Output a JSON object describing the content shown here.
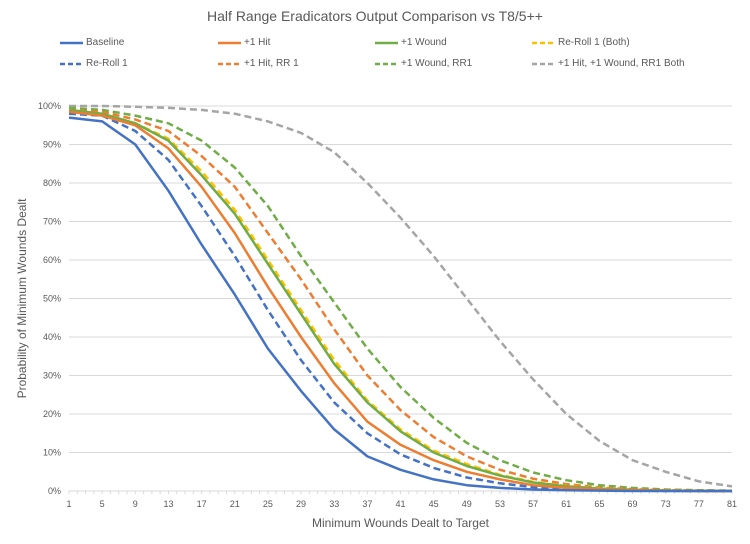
{
  "chart_data": {
    "type": "line",
    "title": "Half Range Eradicators Output Comparison vs T8/5++",
    "xlabel": "Minimum Wounds Dealt to Target",
    "ylabel": "Probability of Minimum Wounds Dealt",
    "x_ticks": [
      "1",
      "5",
      "9",
      "13",
      "17",
      "21",
      "25",
      "29",
      "33",
      "37",
      "41",
      "45",
      "49",
      "53",
      "57",
      "61",
      "65",
      "69",
      "73",
      "77",
      "81"
    ],
    "y_ticks": [
      "0%",
      "10%",
      "20%",
      "30%",
      "40%",
      "50%",
      "60%",
      "70%",
      "80%",
      "90%",
      "100%"
    ],
    "xlim": [
      1,
      81
    ],
    "ylim": [
      0,
      1
    ],
    "grid": "horizontal",
    "legend_position": "top",
    "x": [
      1,
      5,
      9,
      13,
      17,
      21,
      25,
      29,
      33,
      37,
      41,
      45,
      49,
      53,
      57,
      61,
      65,
      69,
      73,
      77,
      81
    ],
    "series": [
      {
        "name": "Baseline",
        "color": "#4472C4",
        "dash": false,
        "values": [
          0.97,
          0.96,
          0.9,
          0.78,
          0.64,
          0.51,
          0.37,
          0.26,
          0.16,
          0.09,
          0.055,
          0.03,
          0.015,
          0.008,
          0.004,
          0.002,
          0.001,
          0.0,
          0.0,
          0.0,
          0.0
        ]
      },
      {
        "name": "+1 Hit",
        "color": "#ED7D31",
        "dash": false,
        "values": [
          0.985,
          0.975,
          0.95,
          0.89,
          0.79,
          0.67,
          0.53,
          0.4,
          0.28,
          0.18,
          0.12,
          0.08,
          0.05,
          0.03,
          0.015,
          0.008,
          0.004,
          0.002,
          0.001,
          0.0,
          0.0
        ]
      },
      {
        "name": "+1 Wound",
        "color": "#70AD47",
        "dash": false,
        "values": [
          0.99,
          0.98,
          0.955,
          0.91,
          0.82,
          0.72,
          0.59,
          0.46,
          0.33,
          0.23,
          0.155,
          0.1,
          0.065,
          0.04,
          0.022,
          0.012,
          0.006,
          0.003,
          0.001,
          0.0,
          0.0
        ]
      },
      {
        "name": "Re-Roll 1 (Both)",
        "color": "#FFC000",
        "dash": true,
        "values": [
          0.99,
          0.98,
          0.955,
          0.915,
          0.83,
          0.73,
          0.6,
          0.47,
          0.34,
          0.235,
          0.16,
          0.105,
          0.07,
          0.042,
          0.024,
          0.013,
          0.007,
          0.003,
          0.001,
          0.0,
          0.0
        ]
      },
      {
        "name": "Re-Roll 1",
        "color": "#4472C4",
        "dash": true,
        "values": [
          0.98,
          0.975,
          0.935,
          0.86,
          0.74,
          0.61,
          0.47,
          0.34,
          0.23,
          0.15,
          0.095,
          0.06,
          0.035,
          0.02,
          0.01,
          0.005,
          0.002,
          0.001,
          0.0,
          0.0,
          0.0
        ]
      },
      {
        "name": "+1 Hit, RR 1",
        "color": "#ED7D31",
        "dash": true,
        "values": [
          0.99,
          0.985,
          0.965,
          0.935,
          0.87,
          0.79,
          0.67,
          0.55,
          0.42,
          0.3,
          0.21,
          0.14,
          0.09,
          0.055,
          0.032,
          0.018,
          0.009,
          0.005,
          0.002,
          0.001,
          0.0
        ]
      },
      {
        "name": "+1 Wound, RR1",
        "color": "#70AD47",
        "dash": true,
        "values": [
          0.995,
          0.99,
          0.975,
          0.955,
          0.91,
          0.84,
          0.74,
          0.61,
          0.49,
          0.37,
          0.27,
          0.19,
          0.125,
          0.08,
          0.048,
          0.028,
          0.015,
          0.008,
          0.004,
          0.002,
          0.001
        ]
      },
      {
        "name": "+1 Hit, +1 Wound, RR1 Both",
        "color": "#A5A5A5",
        "dash": true,
        "values": [
          1.0,
          1.0,
          0.998,
          0.995,
          0.99,
          0.98,
          0.96,
          0.93,
          0.88,
          0.8,
          0.71,
          0.61,
          0.5,
          0.39,
          0.29,
          0.2,
          0.13,
          0.08,
          0.05,
          0.025,
          0.012
        ]
      }
    ]
  },
  "legend_rows": [
    [
      0,
      1,
      2,
      3
    ],
    [
      4,
      5,
      6,
      7
    ]
  ]
}
